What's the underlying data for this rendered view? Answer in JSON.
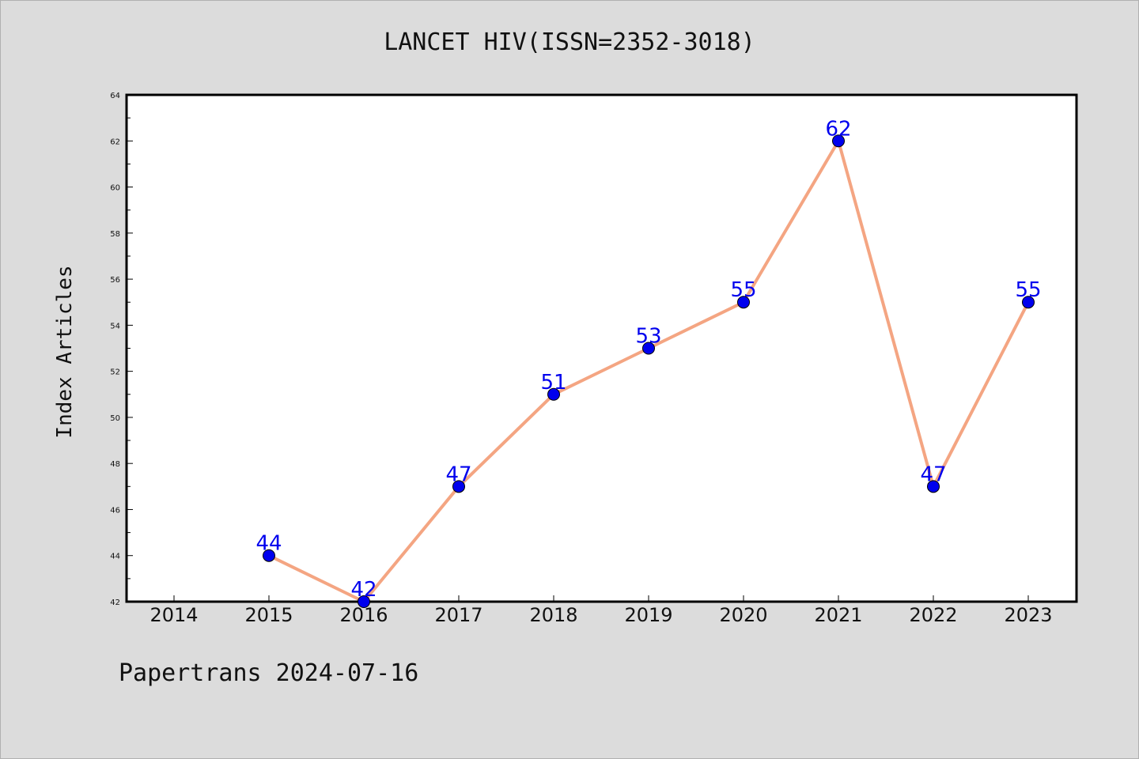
{
  "page": {
    "title": "LANCET HIV(ISSN=2352-3018)",
    "footer": "Papertrans 2024-07-16"
  },
  "colors": {
    "background": "#dcdcdc",
    "plot_background": "#ffffff",
    "line": "#f4a582",
    "marker": "#0000ee",
    "label": "#0000ee"
  },
  "chart_data": {
    "type": "line",
    "title": "LANCET HIV(ISSN=2352-3018)",
    "xlabel": "",
    "ylabel": "Index Articles",
    "categories": [
      "2014",
      "2015",
      "2016",
      "2017",
      "2018",
      "2019",
      "2020",
      "2021",
      "2022",
      "2023"
    ],
    "series": [
      {
        "x": [
          "2015",
          "2016",
          "2017",
          "2018",
          "2019",
          "2020",
          "2021",
          "2022",
          "2023"
        ],
        "values": [
          44,
          42,
          47,
          51,
          53,
          55,
          62,
          47,
          55
        ]
      }
    ],
    "ylim": [
      42,
      64
    ],
    "yticks": [
      42,
      44,
      46,
      48,
      50,
      52,
      54,
      56,
      58,
      60,
      62,
      64
    ],
    "grid": false,
    "legend": "none"
  }
}
